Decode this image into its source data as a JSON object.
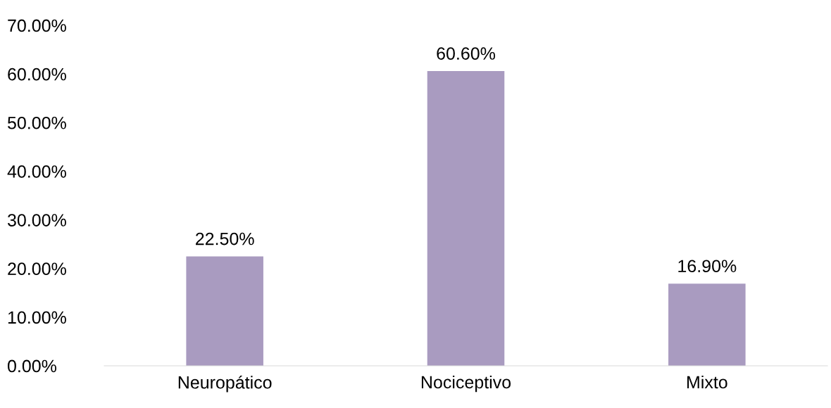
{
  "chart_data": {
    "type": "bar",
    "categories": [
      "Neuropático",
      "Nociceptivo",
      "Mixto"
    ],
    "values": [
      22.5,
      60.6,
      16.9
    ],
    "color": "#a99bc0",
    "value_labels": [
      "22.50%",
      "60.60%",
      "16.90%"
    ],
    "ylim": [
      0,
      70
    ],
    "yticks": [
      {
        "value": 0,
        "label": "0.00%"
      },
      {
        "value": 10,
        "label": "10.00%"
      },
      {
        "value": 20,
        "label": "20.00%"
      },
      {
        "value": 30,
        "label": "30.00%"
      },
      {
        "value": 40,
        "label": "40.00%"
      },
      {
        "value": 50,
        "label": "50.00%"
      },
      {
        "value": 60,
        "label": "60.00%"
      },
      {
        "value": 70,
        "label": "70.00%"
      }
    ],
    "grid": false,
    "legend": false
  }
}
